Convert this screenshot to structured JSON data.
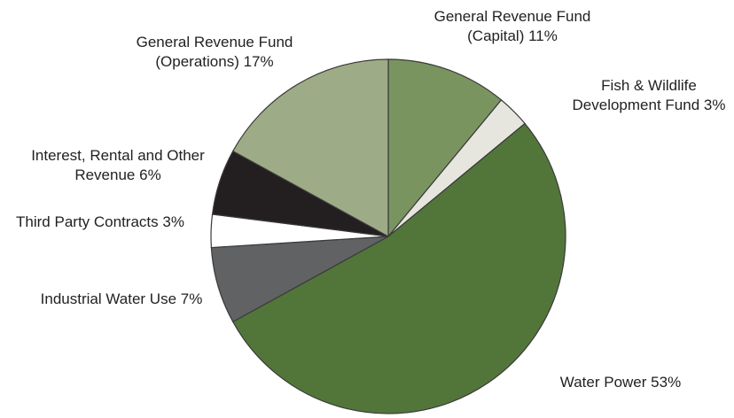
{
  "chart_data": {
    "type": "pie",
    "categories": [
      "General Revenue Fund (Capital)",
      "Fish & Wildlife Development Fund",
      "Water Power",
      "Industrial Water Use",
      "Third Party Contracts",
      "Interest, Rental and Other Revenue",
      "General Revenue Fund (Operations)"
    ],
    "values": [
      11,
      3,
      53,
      7,
      3,
      6,
      17
    ],
    "value_labels": [
      "11%",
      "3%",
      "53%",
      "7%",
      "3%",
      "6%",
      "17%"
    ],
    "colors": [
      "#7a9460",
      "#e6e6df",
      "#52763a",
      "#606264",
      "#ffffff",
      "#231f20",
      "#9eab87"
    ]
  }
}
